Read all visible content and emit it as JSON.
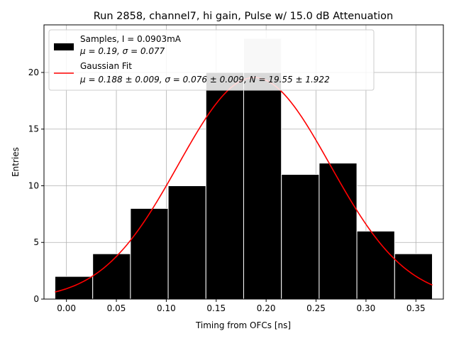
{
  "chart_data": {
    "type": "bar",
    "title": "Run 2858, channel7, hi gain, Pulse w/ 15.0 dB Attenuation",
    "xlabel": "Timing from OFCs [ns]",
    "ylabel": "Entries",
    "xlim": [
      -0.0225,
      0.3775
    ],
    "ylim": [
      0,
      24.2
    ],
    "grid": true,
    "legend_position": "upper-left",
    "x_ticks": [
      0.0,
      0.05,
      0.1,
      0.15,
      0.2,
      0.25,
      0.3,
      0.35
    ],
    "x_tick_labels": [
      "0.00",
      "0.05",
      "0.10",
      "0.15",
      "0.20",
      "0.25",
      "0.30",
      "0.35"
    ],
    "y_ticks": [
      0,
      5,
      10,
      15,
      20
    ],
    "y_tick_labels": [
      "0",
      "5",
      "10",
      "15",
      "20"
    ],
    "bin_edges": [
      -0.0115,
      0.0263,
      0.0641,
      0.1019,
      0.1397,
      0.1775,
      0.2153,
      0.2531,
      0.2909,
      0.3287,
      0.3665
    ],
    "counts": [
      2,
      4,
      8,
      10,
      20,
      23,
      11,
      12,
      6,
      4
    ],
    "highlighted_bin_index": 5,
    "highlighted_bin_value": 20,
    "series": [
      {
        "legend_line1": "Samples, I = 0.0903mA",
        "legend_line2": "μ = 0.19, σ = 0.077",
        "kind": "histogram",
        "color": "#000000"
      },
      {
        "legend_line1": "Gaussian Fit",
        "legend_line2": "μ = 0.188 ± 0.009, σ = 0.076 ± 0.009, N = 19.55 ± 1.922",
        "kind": "line",
        "color": "#ff0000",
        "mu": 0.188,
        "sigma": 0.076,
        "N": 19.55
      }
    ],
    "colors": {
      "bar": "#000000",
      "bar_highlight_fill": "#cccccc",
      "fit_line": "#ff0000",
      "grid": "#b0b0b0"
    }
  }
}
